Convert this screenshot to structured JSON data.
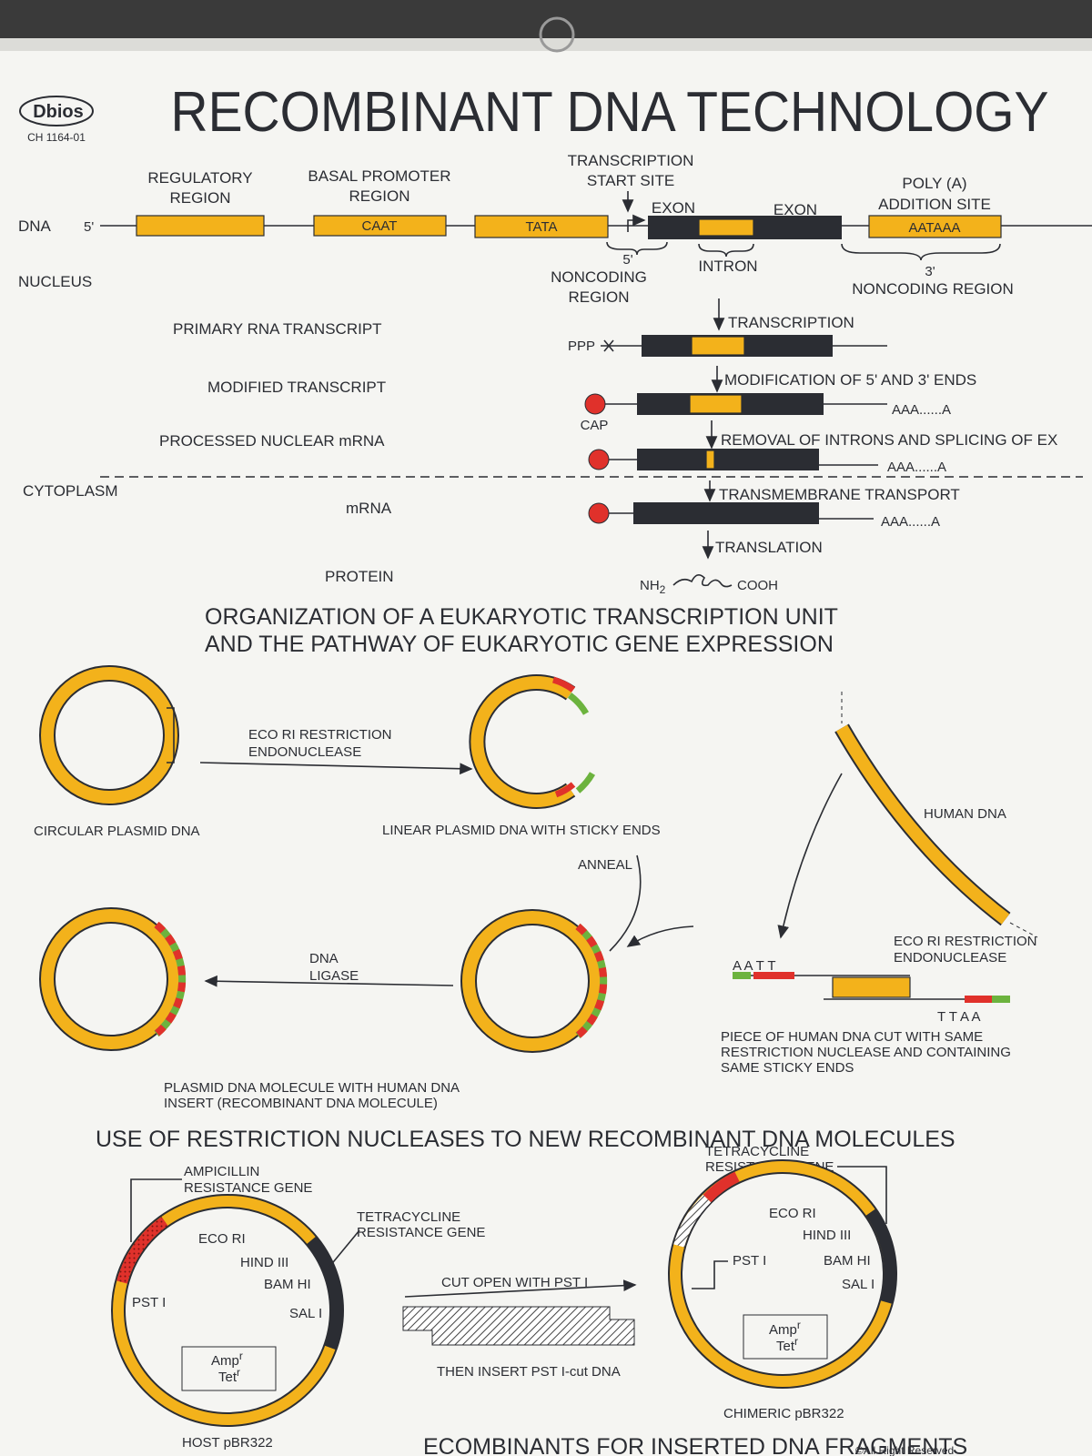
{
  "header": {
    "brand": "Dbios",
    "code": "CH 1164-01",
    "title": "RECOMBINANT DNA TECHNOLOGY"
  },
  "expression": {
    "dna_label": "DNA",
    "five_prime": "5'",
    "regulatory": [
      "REGULATORY",
      "REGION"
    ],
    "basal": [
      "BASAL PROMOTER",
      "REGION"
    ],
    "start_site": [
      "TRANSCRIPTION",
      "START SITE"
    ],
    "exon_1": "EXON",
    "exon_2": "EXON",
    "poly_a": [
      "POLY (A)",
      "ADDITION SITE"
    ],
    "caat": "CAAT",
    "tata": "TATA",
    "aataaa": "AATAAA",
    "nucleus": "NUCLEUS",
    "noncoding_5": [
      "5'",
      "NONCODING",
      "REGION"
    ],
    "intron": "INTRON",
    "noncoding_3": [
      "3'",
      "NONCODING REGION"
    ],
    "primary": {
      "label": "PRIMARY RNA TRANSCRIPT",
      "step": "TRANSCRIPTION",
      "ppp": "PPP"
    },
    "modified": {
      "label": "MODIFIED TRANSCRIPT",
      "step": "MODIFICATION OF 5' AND 3' ENDS",
      "tail": "AAA......A",
      "cap": "CAP"
    },
    "processed": {
      "label": "PROCESSED NUCLEAR mRNA",
      "step": "REMOVAL OF INTRONS AND SPLICING OF EX",
      "tail": "AAA......A"
    },
    "cytoplasm": "CYTOPLASM",
    "transport": "TRANSMEMBRANE TRANSPORT",
    "mrna": {
      "label": "mRNA",
      "tail": "AAA......A",
      "step": "TRANSLATION"
    },
    "protein": {
      "label": "PROTEIN",
      "nh": "NH",
      "nh_sub": "2",
      "cooh": "COOH"
    },
    "caption": [
      "ORGANIZATION OF A EUKARYOTIC TRANSCRIPTION UNIT",
      "AND THE PATHWAY OF EUKARYOTIC GENE EXPRESSION"
    ]
  },
  "recombinant": {
    "eco_ri_1": [
      "ECO RI RESTRICTION",
      "ENDONUCLEASE"
    ],
    "circular": "CIRCULAR PLASMID DNA",
    "linear": "LINEAR PLASMID DNA WITH STICKY ENDS",
    "human": "HUMAN DNA",
    "anneal": "ANNEAL",
    "ligase": [
      "DNA",
      "LIGASE"
    ],
    "eco_ri_2": [
      "ECO RI RESTRICTION",
      "ENDONUCLEASE"
    ],
    "sticky_top": "A A T T",
    "sticky_bottom": "T T A A",
    "piece": [
      "PIECE OF HUMAN DNA CUT WITH SAME",
      "RESTRICTION NUCLEASE AND CONTAINING",
      "SAME STICKY ENDS"
    ],
    "product": [
      "PLASMID DNA MOLECULE WITH HUMAN DNA",
      "INSERT (RECOMBINANT DNA MOLECULE)"
    ],
    "heading": "USE OF RESTRICTION NUCLEASES TO NEW RECOMBINANT DNA MOLECULES"
  },
  "cloning": {
    "amp_gene": [
      "AMPICILLIN",
      "RESISTANCE GENE"
    ],
    "tet_gene": [
      "TETRACYCLINE",
      "RESISTANCE GENE"
    ],
    "host": {
      "eco": "ECO RI",
      "hind": "HIND III",
      "bam": "BAM HI",
      "sal": "SAL I",
      "pst": "PST I",
      "amp": "Amp",
      "tet": "Tet",
      "sup": "r",
      "name": "HOST pBR322"
    },
    "cut": "CUT OPEN WITH PST I",
    "insert": "THEN INSERT PST I-cut DNA",
    "chimeric": {
      "tet_gene": [
        "TETRACYCLINE",
        "RESISTANCE GENE"
      ],
      "eco": "ECO RI",
      "hind": "HIND III",
      "bam": "BAM HI",
      "sal": "SAL I",
      "pst": "PST I",
      "amp": "Amp",
      "tet": "Tet",
      "sup": "r",
      "name": "CHIMERIC pBR322"
    },
    "footer": "ECOMBINANTS FOR INSERTED DNA FRAGMENTS",
    "copyright": "©All Right Reserved"
  }
}
